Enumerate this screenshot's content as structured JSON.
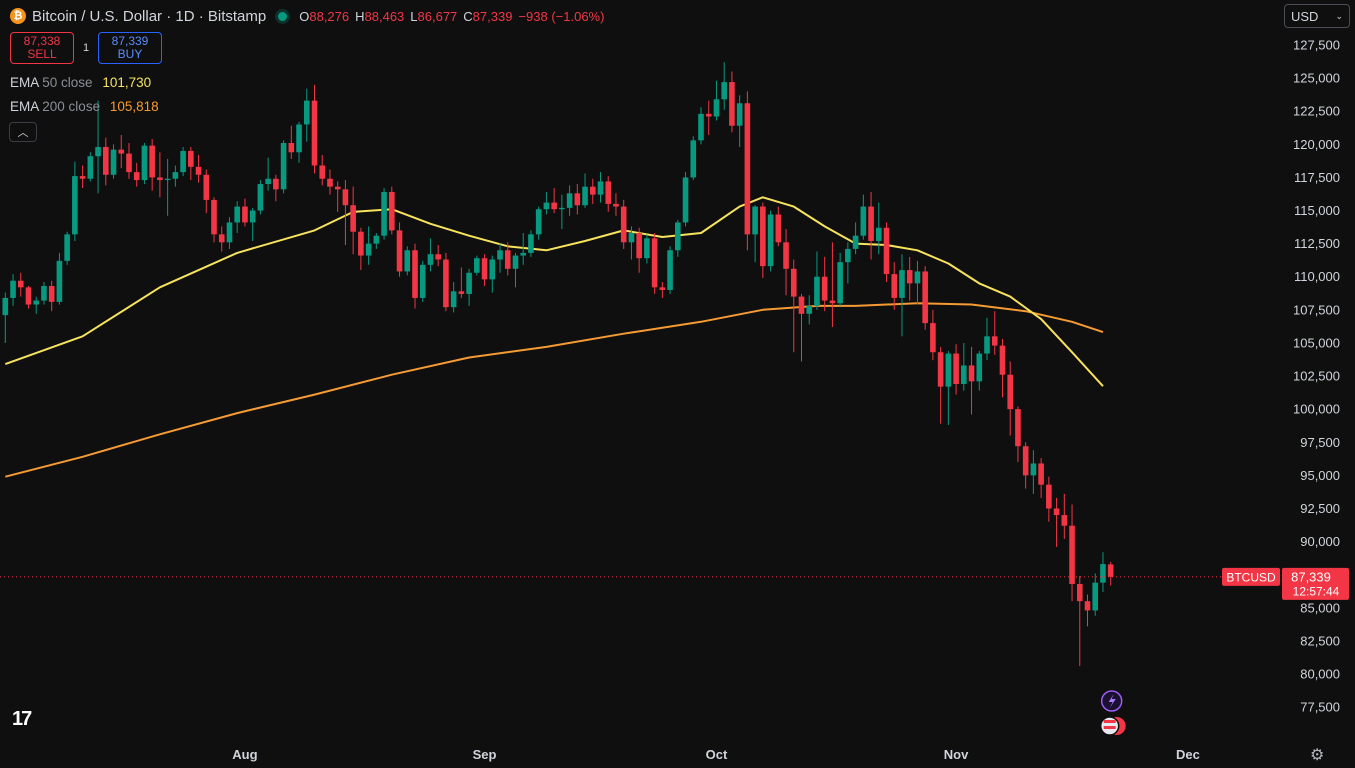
{
  "header": {
    "logo_icon": "bitcoin-icon",
    "title": "Bitcoin / U.S. Dollar · 1D · Bitstamp",
    "ohlc": {
      "o_label": "O",
      "o": "88,276",
      "h_label": "H",
      "h": "88,463",
      "l_label": "L",
      "l": "86,677",
      "c_label": "C",
      "c": "87,339",
      "change": "−938 (−1.06%)"
    }
  },
  "trade": {
    "sell_price": "87,338",
    "sell_label": "SELL",
    "spread": "1",
    "buy_price": "87,339",
    "buy_label": "BUY"
  },
  "indicators": {
    "ema50": {
      "name": "EMA",
      "params": "50 close",
      "value": "101,730",
      "color": "#f7e35c"
    },
    "ema200": {
      "name": "EMA",
      "params": "200 close",
      "value": "105,818",
      "color": "#f69b33"
    }
  },
  "currency": {
    "selected": "USD"
  },
  "price_label": {
    "symbol": "BTCUSD",
    "price": "87,339",
    "countdown": "12:57:44"
  },
  "colors": {
    "up": "#089981",
    "down": "#f23645",
    "background": "#0f0f0f"
  },
  "chart_data": {
    "type": "candlestick",
    "y_axis": {
      "ticks": [
        77500,
        80000,
        82500,
        85000,
        87500,
        90000,
        92500,
        95000,
        97500,
        100000,
        102500,
        105000,
        107500,
        110000,
        112500,
        115000,
        117500,
        120000,
        122500,
        125000,
        127500
      ],
      "range": [
        76000,
        128500
      ]
    },
    "x_axis": {
      "labels": [
        "Aug",
        "Sep",
        "Oct",
        "Nov",
        "Dec"
      ],
      "label_day_index": [
        31,
        62,
        92,
        123,
        153
      ]
    },
    "start_date": "2025-07-01",
    "candles": [
      [
        107100,
        108800,
        105000,
        108400
      ],
      [
        108400,
        110200,
        107800,
        109700
      ],
      [
        109700,
        110300,
        108500,
        109200
      ],
      [
        109200,
        109300,
        107600,
        107900
      ],
      [
        107900,
        108500,
        107200,
        108200
      ],
      [
        108200,
        109600,
        107900,
        109300
      ],
      [
        109300,
        109700,
        107400,
        108100
      ],
      [
        108100,
        111800,
        107900,
        111200
      ],
      [
        111200,
        113400,
        110900,
        113200
      ],
      [
        113200,
        118700,
        112700,
        117600
      ],
      [
        117600,
        118400,
        116700,
        117400
      ],
      [
        117400,
        119400,
        117200,
        119100
      ],
      [
        119100,
        123300,
        116300,
        119800
      ],
      [
        119800,
        120500,
        116900,
        117700
      ],
      [
        117700,
        120000,
        117400,
        119600
      ],
      [
        119600,
        120700,
        118200,
        119300
      ],
      [
        119300,
        120100,
        117400,
        117900
      ],
      [
        117900,
        118600,
        116800,
        117300
      ],
      [
        117300,
        120100,
        117000,
        119900
      ],
      [
        119900,
        120400,
        116500,
        117500
      ],
      [
        117500,
        119400,
        116000,
        117300
      ],
      [
        117300,
        118900,
        114600,
        117400
      ],
      [
        117400,
        118400,
        116800,
        117900
      ],
      [
        117900,
        119800,
        117600,
        119500
      ],
      [
        119500,
        119800,
        117300,
        118300
      ],
      [
        118300,
        119200,
        117100,
        117700
      ],
      [
        117700,
        118100,
        114800,
        115800
      ],
      [
        115800,
        116000,
        112600,
        113200
      ],
      [
        113200,
        113800,
        111900,
        112600
      ],
      [
        112600,
        114500,
        112100,
        114100
      ],
      [
        114100,
        115700,
        113300,
        115300
      ],
      [
        115300,
        115900,
        113800,
        114100
      ],
      [
        114100,
        115200,
        112700,
        115000
      ],
      [
        115000,
        117300,
        114700,
        117000
      ],
      [
        117000,
        119000,
        116500,
        117400
      ],
      [
        117400,
        117700,
        115700,
        116600
      ],
      [
        116600,
        120300,
        116300,
        120100
      ],
      [
        120100,
        121400,
        118900,
        119400
      ],
      [
        119400,
        121700,
        118600,
        121500
      ],
      [
        121500,
        124200,
        120200,
        123300
      ],
      [
        123300,
        124500,
        117800,
        118400
      ],
      [
        118400,
        119200,
        116900,
        117400
      ],
      [
        117400,
        118100,
        116200,
        116800
      ],
      [
        116800,
        117200,
        114900,
        116600
      ],
      [
        116600,
        117300,
        112400,
        115400
      ],
      [
        115400,
        116800,
        111700,
        113400
      ],
      [
        113400,
        113700,
        110500,
        111600
      ],
      [
        111600,
        113800,
        110900,
        112500
      ],
      [
        112500,
        113300,
        112100,
        113100
      ],
      [
        113100,
        116700,
        112800,
        116400
      ],
      [
        116400,
        116800,
        113200,
        113500
      ],
      [
        113500,
        114100,
        110000,
        110400
      ],
      [
        110400,
        112300,
        110100,
        112000
      ],
      [
        112000,
        112500,
        107600,
        108400
      ],
      [
        108400,
        111200,
        108100,
        110900
      ],
      [
        110900,
        112900,
        110400,
        111700
      ],
      [
        111700,
        112400,
        110800,
        111300
      ],
      [
        111300,
        111800,
        107400,
        107700
      ],
      [
        107700,
        109600,
        107300,
        108900
      ],
      [
        108900,
        110700,
        108400,
        108700
      ],
      [
        108700,
        110600,
        107800,
        110300
      ],
      [
        110300,
        111600,
        110100,
        111400
      ],
      [
        111400,
        111700,
        109300,
        109800
      ],
      [
        109800,
        111600,
        108800,
        111300
      ],
      [
        111300,
        112500,
        110300,
        112000
      ],
      [
        112000,
        112600,
        110100,
        110600
      ],
      [
        110600,
        111800,
        109200,
        111600
      ],
      [
        111600,
        113300,
        110900,
        111800
      ],
      [
        111800,
        113500,
        111500,
        113200
      ],
      [
        113200,
        115300,
        112800,
        115100
      ],
      [
        115100,
        116400,
        114700,
        115600
      ],
      [
        115600,
        116700,
        114800,
        115100
      ],
      [
        115100,
        116200,
        113600,
        115200
      ],
      [
        115200,
        116900,
        114600,
        116300
      ],
      [
        116300,
        117000,
        114700,
        115400
      ],
      [
        115400,
        117800,
        115200,
        116800
      ],
      [
        116800,
        117400,
        115500,
        116200
      ],
      [
        116200,
        117900,
        115600,
        117200
      ],
      [
        117200,
        117600,
        114900,
        115500
      ],
      [
        115500,
        116300,
        114600,
        115300
      ],
      [
        115300,
        115800,
        112100,
        112600
      ],
      [
        112600,
        113800,
        111300,
        113300
      ],
      [
        113300,
        113700,
        110300,
        111400
      ],
      [
        111400,
        113200,
        111000,
        112900
      ],
      [
        112900,
        113300,
        108700,
        109200
      ],
      [
        109200,
        109600,
        108400,
        109000
      ],
      [
        109000,
        112300,
        108700,
        112000
      ],
      [
        112000,
        114300,
        111500,
        114100
      ],
      [
        114100,
        117900,
        113800,
        117500
      ],
      [
        117500,
        120600,
        117300,
        120300
      ],
      [
        120300,
        122800,
        120000,
        122300
      ],
      [
        122300,
        123300,
        120700,
        122100
      ],
      [
        122100,
        124800,
        121800,
        123400
      ],
      [
        123400,
        126200,
        122600,
        124700
      ],
      [
        124700,
        125500,
        120900,
        121400
      ],
      [
        121400,
        123700,
        119800,
        123100
      ],
      [
        123100,
        124000,
        112000,
        113200
      ],
      [
        113200,
        115400,
        111100,
        115300
      ],
      [
        115300,
        115600,
        109900,
        110800
      ],
      [
        110800,
        115000,
        110400,
        114700
      ],
      [
        114700,
        115300,
        112300,
        112600
      ],
      [
        112600,
        113600,
        108600,
        110600
      ],
      [
        110600,
        111300,
        104300,
        108500
      ],
      [
        108500,
        108700,
        103600,
        107200
      ],
      [
        107200,
        108600,
        106400,
        107800
      ],
      [
        107800,
        111900,
        107500,
        110000
      ],
      [
        110000,
        111500,
        107400,
        108200
      ],
      [
        108200,
        112600,
        106200,
        108000
      ],
      [
        108000,
        111800,
        107800,
        111100
      ],
      [
        111100,
        112600,
        109500,
        112100
      ],
      [
        112100,
        114100,
        111700,
        113100
      ],
      [
        113100,
        116200,
        112800,
        115300
      ],
      [
        115300,
        116400,
        111300,
        112700
      ],
      [
        112700,
        115600,
        111700,
        113700
      ],
      [
        113700,
        114100,
        109600,
        110200
      ],
      [
        110200,
        111100,
        107500,
        108400
      ],
      [
        108400,
        111700,
        105500,
        110500
      ],
      [
        110500,
        111500,
        108200,
        109500
      ],
      [
        109500,
        111200,
        107900,
        110400
      ],
      [
        110400,
        110800,
        106000,
        106500
      ],
      [
        106500,
        107500,
        103700,
        104300
      ],
      [
        104300,
        104700,
        98900,
        101700
      ],
      [
        101700,
        104400,
        98800,
        104200
      ],
      [
        104200,
        104900,
        101100,
        101900
      ],
      [
        101900,
        105000,
        101400,
        103300
      ],
      [
        103300,
        104700,
        99600,
        102100
      ],
      [
        102100,
        104400,
        101400,
        104200
      ],
      [
        104200,
        106900,
        103700,
        105500
      ],
      [
        105500,
        107400,
        104100,
        104800
      ],
      [
        104800,
        105300,
        100900,
        102600
      ],
      [
        102600,
        103600,
        98000,
        100000
      ],
      [
        100000,
        100200,
        96000,
        97200
      ],
      [
        97200,
        97500,
        94000,
        95000
      ],
      [
        95000,
        96900,
        93600,
        95900
      ],
      [
        95900,
        96300,
        93300,
        94300
      ],
      [
        94300,
        94900,
        91500,
        92500
      ],
      [
        92500,
        93300,
        89600,
        92000
      ],
      [
        92000,
        93600,
        90200,
        91200
      ],
      [
        91200,
        92800,
        85500,
        86800
      ],
      [
        86800,
        87400,
        80600,
        85500
      ],
      [
        85500,
        86000,
        83600,
        84800
      ],
      [
        84800,
        87600,
        84400,
        86900
      ],
      [
        86900,
        89200,
        86200,
        88300
      ],
      [
        88276,
        88463,
        86677,
        87339
      ]
    ],
    "ema50": [
      [
        0,
        103400
      ],
      [
        10,
        105500
      ],
      [
        20,
        109200
      ],
      [
        30,
        111800
      ],
      [
        40,
        113500
      ],
      [
        45,
        114900
      ],
      [
        50,
        115100
      ],
      [
        55,
        114000
      ],
      [
        60,
        113100
      ],
      [
        65,
        112300
      ],
      [
        70,
        112000
      ],
      [
        75,
        112700
      ],
      [
        80,
        113500
      ],
      [
        85,
        113000
      ],
      [
        90,
        113300
      ],
      [
        95,
        115300
      ],
      [
        98,
        116000
      ],
      [
        102,
        115300
      ],
      [
        106,
        113800
      ],
      [
        110,
        112500
      ],
      [
        114,
        112400
      ],
      [
        118,
        112000
      ],
      [
        122,
        111000
      ],
      [
        126,
        109500
      ],
      [
        130,
        108500
      ],
      [
        134,
        106800
      ],
      [
        138,
        104300
      ],
      [
        142,
        101730
      ]
    ],
    "ema200": [
      [
        0,
        94900
      ],
      [
        10,
        96400
      ],
      [
        20,
        98100
      ],
      [
        30,
        99700
      ],
      [
        40,
        101100
      ],
      [
        50,
        102600
      ],
      [
        60,
        103900
      ],
      [
        70,
        104700
      ],
      [
        80,
        105700
      ],
      [
        90,
        106600
      ],
      [
        98,
        107500
      ],
      [
        105,
        107800
      ],
      [
        110,
        107800
      ],
      [
        118,
        108000
      ],
      [
        125,
        107900
      ],
      [
        132,
        107400
      ],
      [
        138,
        106600
      ],
      [
        142,
        105818
      ]
    ]
  }
}
